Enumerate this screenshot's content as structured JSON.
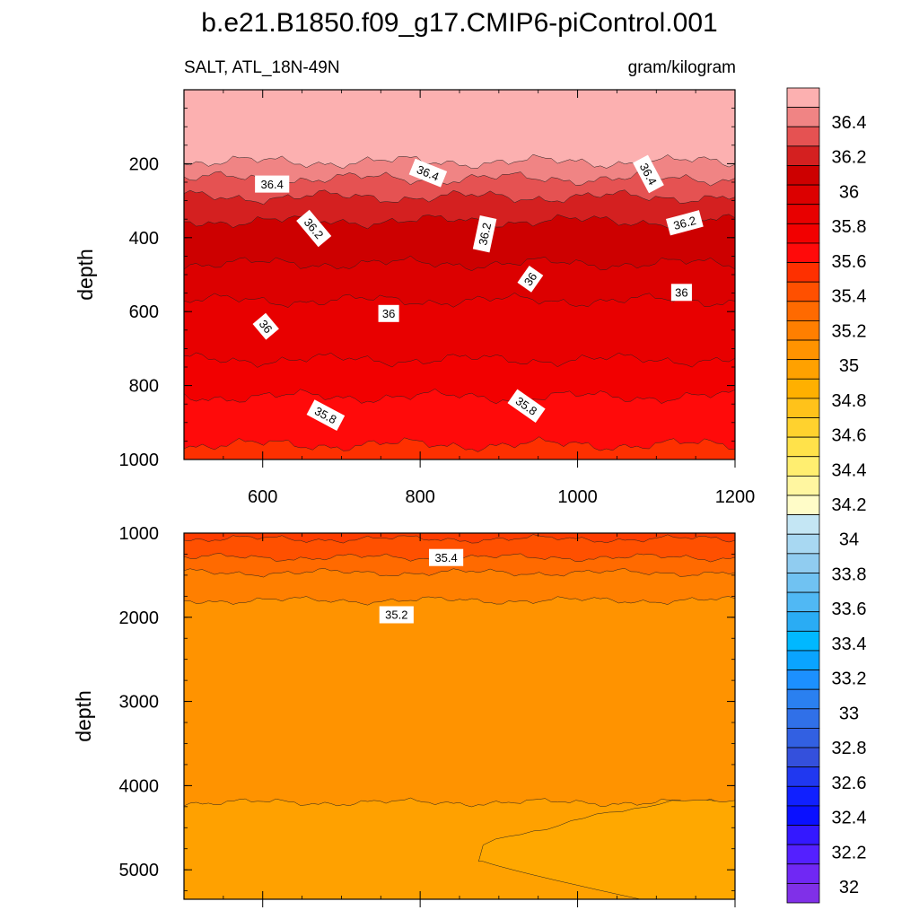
{
  "title": "b.e21.B1850.f09_g17.CMIP6-piControl.001",
  "left_label": "SALT, ATL_18N-49N",
  "right_label": "gram/kilogram",
  "chart_data": [
    {
      "type": "heatmap",
      "panel": "upper",
      "title": "b.e21.B1850.f09_g17.CMIP6-piControl.001",
      "variable": "SALT, ATL_18N-49N",
      "units": "gram/kilogram",
      "xlabel": "",
      "ylabel": "depth",
      "xlim": [
        500,
        1200
      ],
      "ylim": [
        1000,
        0
      ],
      "x_ticks": [
        "600",
        "800",
        "1000",
        "1200"
      ],
      "y_ticks": [
        "200",
        "400",
        "600",
        "800",
        "1000"
      ],
      "bands": [
        {
          "upper_bound": 0,
          "level": 36.5,
          "color": "#fcb0b0"
        },
        {
          "upper_bound": 195,
          "level": 36.45,
          "color": "#f08484"
        },
        {
          "upper_bound": 240,
          "level": 36.35,
          "color": "#e55252"
        },
        {
          "upper_bound": 290,
          "level": 36.25,
          "color": "#d42020"
        },
        {
          "upper_bound": 355,
          "level": 36.15,
          "color": "#cd0000"
        },
        {
          "upper_bound": 470,
          "level": 36.05,
          "color": "#dc0000"
        },
        {
          "upper_bound": 570,
          "level": 35.95,
          "color": "#e80000"
        },
        {
          "upper_bound": 730,
          "level": 35.85,
          "color": "#f20000"
        },
        {
          "upper_bound": 830,
          "level": 35.75,
          "color": "#ff0a0a"
        },
        {
          "upper_bound": 960,
          "level": 35.65,
          "color": "#fe3000"
        }
      ],
      "contour_labels": [
        {
          "text": "36.4",
          "x": 612,
          "depth": 255,
          "angle": 0
        },
        {
          "text": "36.4",
          "x": 810,
          "depth": 225,
          "angle": 22
        },
        {
          "text": "36.4",
          "x": 1090,
          "depth": 228,
          "angle": 62
        },
        {
          "text": "36.2",
          "x": 665,
          "depth": 375,
          "angle": 50
        },
        {
          "text": "36.2",
          "x": 882,
          "depth": 390,
          "angle": -78
        },
        {
          "text": "36.2",
          "x": 1136,
          "depth": 360,
          "angle": -15
        },
        {
          "text": "36",
          "x": 940,
          "depth": 512,
          "angle": -55
        },
        {
          "text": "36",
          "x": 1132,
          "depth": 548,
          "angle": 0
        },
        {
          "text": "36",
          "x": 760,
          "depth": 605,
          "angle": 0
        },
        {
          "text": "36",
          "x": 604,
          "depth": 640,
          "angle": 50
        },
        {
          "text": "35.8",
          "x": 680,
          "depth": 880,
          "angle": 28
        },
        {
          "text": "35.8",
          "x": 935,
          "depth": 855,
          "angle": 35
        }
      ]
    },
    {
      "type": "heatmap",
      "panel": "lower",
      "xlabel": "",
      "ylabel": "depth",
      "xlim": [
        500,
        1200
      ],
      "ylim": [
        5350,
        1000
      ],
      "y_ticks": [
        "1000",
        "2000",
        "3000",
        "4000",
        "5000"
      ],
      "bands": [
        {
          "upper_bound": 1000,
          "level": 35.55,
          "color": "#fe3c00"
        },
        {
          "upper_bound": 1070,
          "level": 35.45,
          "color": "#ff5000"
        },
        {
          "upper_bound": 1290,
          "level": 35.35,
          "color": "#ff6a00"
        },
        {
          "upper_bound": 1470,
          "level": 35.25,
          "color": "#ff7f00"
        },
        {
          "upper_bound": 1800,
          "level": 35.15,
          "color": "#ff9300"
        },
        {
          "upper_bound": 4200,
          "level": 35.05,
          "color": "#ffa100"
        }
      ],
      "contour_labels": [
        {
          "text": "35.4",
          "x": 833,
          "depth": 1290,
          "angle": 0
        },
        {
          "text": "35.2",
          "x": 770,
          "depth": 1970,
          "angle": 0
        }
      ]
    }
  ],
  "colorbar": {
    "labels": [
      "36.4",
      "36.2",
      "36",
      "35.8",
      "35.6",
      "35.4",
      "35.2",
      "35",
      "34.8",
      "34.6",
      "34.4",
      "34.2",
      "34",
      "33.8",
      "33.6",
      "33.4",
      "33.2",
      "33",
      "32.8",
      "32.6",
      "32.4",
      "32.2",
      "32"
    ],
    "colors": [
      "#fcb0b0",
      "#f08484",
      "#e55252",
      "#d42020",
      "#cd0000",
      "#dc0000",
      "#e80000",
      "#f20000",
      "#ff0a0a",
      "#fe3000",
      "#ff5000",
      "#ff6a00",
      "#ff7f00",
      "#ff9300",
      "#ffa100",
      "#ffb000",
      "#ffc21a",
      "#ffd22e",
      "#ffe24a",
      "#ffee70",
      "#fff6a0",
      "#fffcc8",
      "#c4e6f4",
      "#a8d8f2",
      "#90ccf0",
      "#70c2f2",
      "#50b8f4",
      "#2aacf4",
      "#00b8ff",
      "#0aa4ff",
      "#1c90ff",
      "#2a80f0",
      "#3070e8",
      "#3260e2",
      "#3450dc",
      "#2038f0",
      "#1020ff",
      "#0a10ff",
      "#3418ff",
      "#5420ff",
      "#7028f4",
      "#8030e8"
    ]
  }
}
